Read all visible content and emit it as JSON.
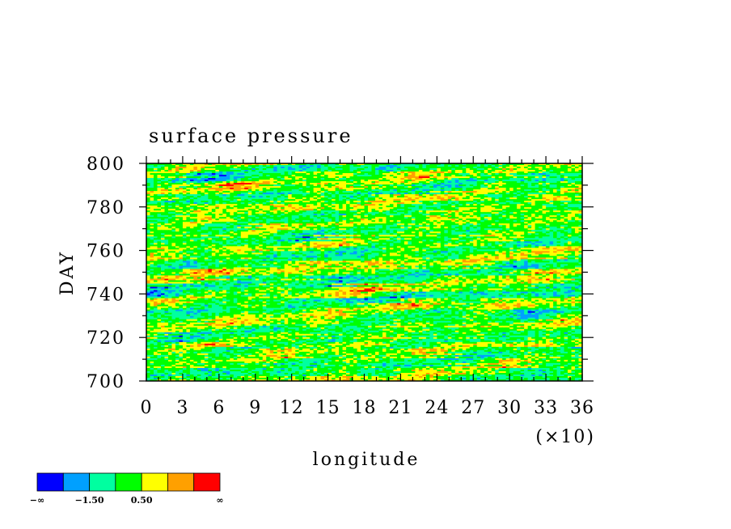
{
  "chart_data": {
    "type": "heatmap",
    "title": "surface pressure",
    "xlabel": "longitude",
    "ylabel": "DAY",
    "x_multiplier_label": "(×10)",
    "xlim": [
      0,
      36
    ],
    "ylim": [
      700,
      800
    ],
    "x_ticks": [
      "0",
      "3",
      "6",
      "9",
      "12",
      "15",
      "18",
      "21",
      "24",
      "27",
      "30",
      "33",
      "36"
    ],
    "y_ticks": [
      "700",
      "720",
      "740",
      "760",
      "780",
      "800"
    ],
    "colorbar": {
      "colors": [
        "#0000ff",
        "#00a0ff",
        "#00ffa0",
        "#00ff00",
        "#ffff00",
        "#ffa000",
        "#ff0000"
      ],
      "labels": [
        "−∞",
        "−1.50",
        "0.50",
        "∞"
      ]
    }
  }
}
